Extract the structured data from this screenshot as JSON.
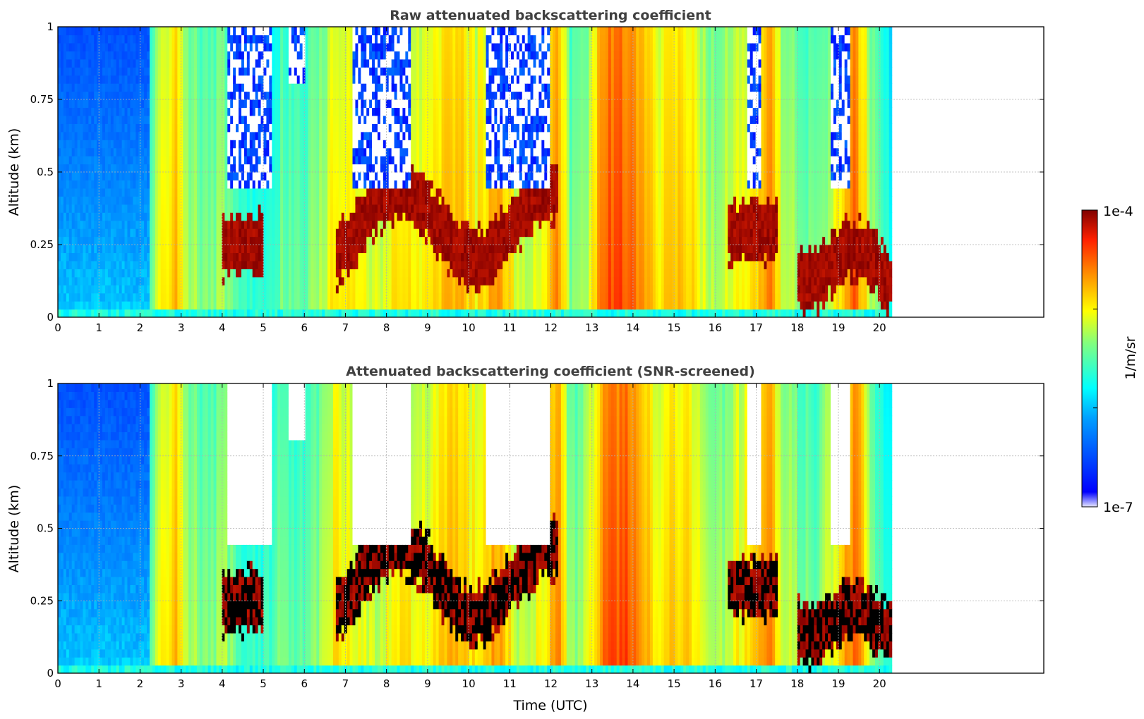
{
  "chart_data": [
    {
      "type": "heatmap",
      "title": "Raw attenuated backscattering coefficient",
      "xlabel": "",
      "ylabel": "Altitude (km)",
      "xlim": [
        0,
        24
      ],
      "ylim": [
        0,
        1
      ],
      "xticks": [
        "0",
        "1",
        "2",
        "3",
        "4",
        "5",
        "6",
        "7",
        "8",
        "9",
        "10",
        "11",
        "12",
        "13",
        "14",
        "15",
        "16",
        "17",
        "18",
        "19",
        "20"
      ],
      "yticks": [
        "0",
        "0.25",
        "0.5",
        "0.75",
        "1"
      ],
      "grid": "dotted",
      "data_extent_x": [
        0,
        20.3
      ],
      "scale": "log",
      "color_range": [
        1e-07,
        0.0001
      ]
    },
    {
      "type": "heatmap",
      "title": "Attenuated backscattering coefficient (SNR-screened)",
      "xlabel": "Time (UTC)",
      "ylabel": "Altitude (km)",
      "xlim": [
        0,
        24
      ],
      "ylim": [
        0,
        1
      ],
      "xticks": [
        "0",
        "1",
        "2",
        "3",
        "4",
        "5",
        "6",
        "7",
        "8",
        "9",
        "10",
        "11",
        "12",
        "13",
        "14",
        "15",
        "16",
        "17",
        "18",
        "19",
        "20"
      ],
      "yticks": [
        "0",
        "0.25",
        "0.5",
        "0.75",
        "1"
      ],
      "grid": "dotted",
      "data_extent_x": [
        0,
        20.3
      ],
      "scale": "log",
      "color_range": [
        1e-07,
        0.0001
      ]
    }
  ],
  "colorbar": {
    "max_label": "1e-4",
    "min_label": "1e-7",
    "unit_label": "1/m/sr",
    "colormap": "jet"
  }
}
